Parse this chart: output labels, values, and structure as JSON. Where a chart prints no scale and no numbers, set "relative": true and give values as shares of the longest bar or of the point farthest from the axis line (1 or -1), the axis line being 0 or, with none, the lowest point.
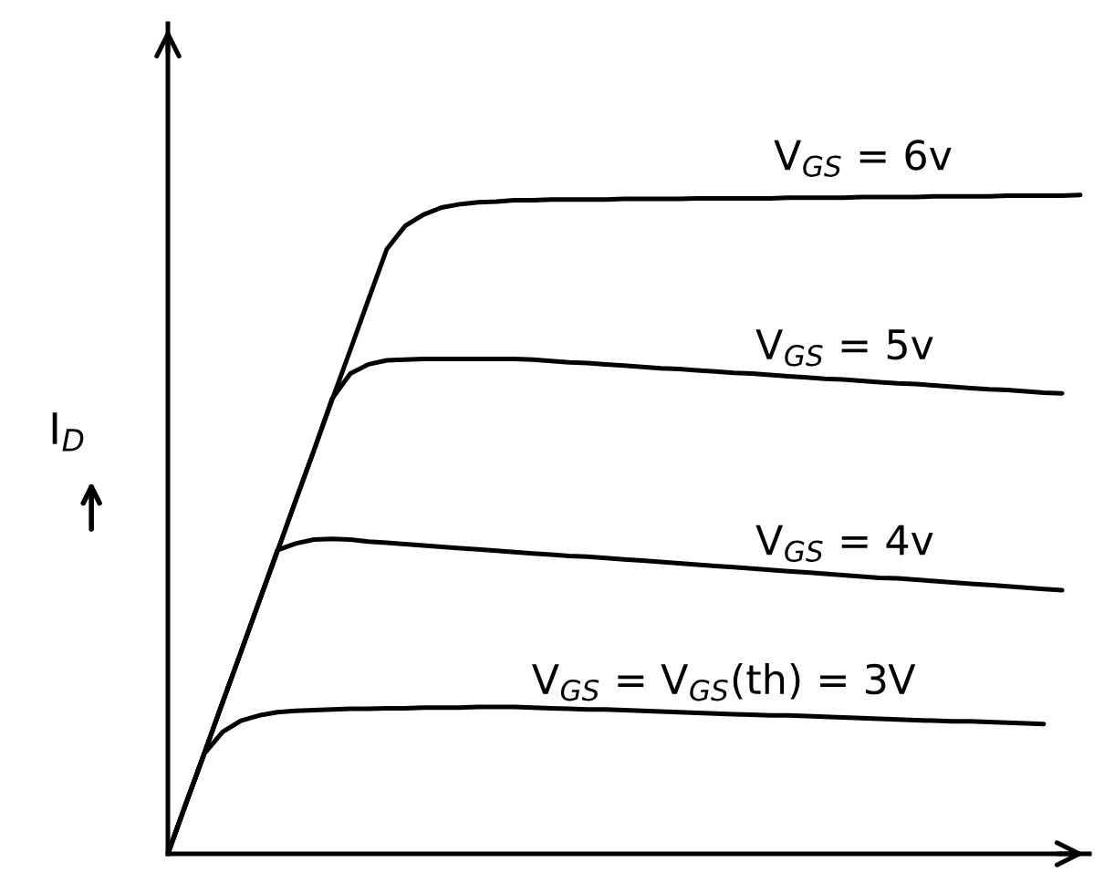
{
  "chart_data": {
    "type": "line",
    "relative": true,
    "ylabel": "I$_{D}$",
    "line_style": "solid",
    "marker": "none",
    "categories": [
      null,
      null,
      null,
      null,
      null,
      null,
      null,
      null,
      null,
      null,
      null,
      null,
      null,
      null,
      null,
      null,
      null,
      null,
      null,
      null,
      null,
      null,
      null,
      null,
      null,
      null,
      null,
      null,
      null,
      null,
      null,
      null,
      null,
      null,
      null,
      null,
      null,
      null,
      null,
      null,
      null,
      null,
      null,
      null,
      null,
      null,
      null,
      null,
      null,
      null,
      null
    ],
    "series": [
      {
        "name": "V$_{GS}$ = 6v",
        "color": "#000000",
        "values": [
          0,
          0.077,
          0.153,
          0.23,
          0.306,
          0.383,
          0.459,
          0.536,
          0.612,
          0.689,
          0.765,
          0.842,
          0.918,
          0.953,
          0.97,
          0.981,
          0.986,
          0.989,
          0.99,
          0.992,
          0.992,
          0.993,
          0.993,
          0.993,
          0.993,
          0.994,
          0.994,
          0.994,
          0.994,
          0.995,
          0.995,
          0.995,
          0.995,
          0.995,
          0.996,
          0.996,
          0.996,
          0.996,
          0.997,
          0.997,
          0.997,
          0.997,
          0.998,
          0.998,
          0.998,
          0.998,
          0.999,
          0.999,
          0.999,
          0.999,
          1
        ]
      },
      {
        "name": "V$_{GS}$ = 5v",
        "color": "#000000",
        "values": [
          0,
          0.077,
          0.153,
          0.23,
          0.306,
          0.383,
          0.459,
          0.536,
          0.612,
          0.691,
          0.729,
          0.743,
          0.749,
          0.75,
          0.751,
          0.751,
          0.751,
          0.751,
          0.751,
          0.751,
          0.75,
          0.748,
          0.746,
          0.745,
          0.743,
          0.741,
          0.739,
          0.737,
          0.736,
          0.734,
          0.732,
          0.73,
          0.729,
          0.727,
          0.725,
          0.723,
          0.721,
          0.72,
          0.718,
          0.716,
          0.714,
          0.713,
          0.711,
          0.709,
          0.707,
          0.705,
          0.704,
          0.702,
          0.7,
          0.699,
          null
        ]
      },
      {
        "name": "V$_{GS}$ = 4v",
        "color": "#000000",
        "values": [
          0,
          0.077,
          0.153,
          0.23,
          0.306,
          0.383,
          0.461,
          0.471,
          0.477,
          0.478,
          0.477,
          0.474,
          0.472,
          0.47,
          0.468,
          0.466,
          0.464,
          0.462,
          0.46,
          0.458,
          0.456,
          0.454,
          0.452,
          0.451,
          0.449,
          0.447,
          0.445,
          0.443,
          0.441,
          0.439,
          0.437,
          0.435,
          0.433,
          0.431,
          0.429,
          0.427,
          0.425,
          0.423,
          0.421,
          0.419,
          0.418,
          0.416,
          0.414,
          0.412,
          0.41,
          0.408,
          0.406,
          0.404,
          0.402,
          0.4,
          null
        ]
      },
      {
        "name": "V$_{GS}$ = V$_{GS}$(th) = 3V",
        "color": "#000000",
        "values": [
          0,
          0.077,
          0.152,
          0.185,
          0.202,
          0.21,
          0.215,
          0.217,
          0.218,
          0.219,
          0.22,
          0.22,
          0.221,
          0.221,
          0.222,
          0.222,
          0.222,
          0.223,
          0.223,
          0.223,
          0.222,
          0.221,
          0.22,
          0.219,
          0.219,
          0.218,
          0.217,
          0.216,
          0.215,
          0.214,
          0.213,
          0.212,
          0.211,
          0.21,
          0.21,
          0.209,
          0.208,
          0.207,
          0.206,
          0.205,
          0.204,
          0.203,
          0.202,
          0.201,
          0.201,
          0.2,
          0.199,
          0.198,
          0.197,
          null,
          null
        ]
      }
    ]
  }
}
